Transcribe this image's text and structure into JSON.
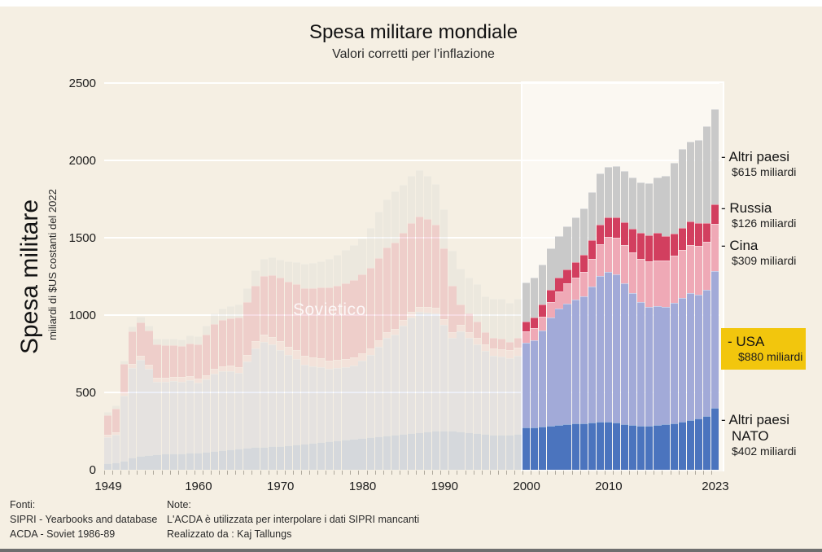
{
  "page": {
    "title": "Spesa militare mondiale",
    "subtitle": "Valori corretti per l’inflazione"
  },
  "y_axis": {
    "title": "Spesa militare",
    "unit": "miliardi di $US costanti del 2022",
    "ticks": [
      0,
      500,
      1000,
      1500,
      2000,
      2500
    ]
  },
  "x_axis": {
    "ticks": [
      1949,
      1960,
      1970,
      1980,
      1990,
      2000,
      2010,
      2023
    ]
  },
  "watermark": "Sovietico",
  "legend": [
    {
      "label": "- Altri paesi",
      "value": "$615 miliardi",
      "color": "#c9c9c9",
      "highlight": false
    },
    {
      "label": "- Russia",
      "value": "$126 miliardi",
      "color": "#d23f5f",
      "highlight": false
    },
    {
      "label": "- Cina",
      "value": "$309 miliardi",
      "color": "#efa9b6",
      "highlight": false
    },
    {
      "label": "- USA",
      "value": "$880 miliardi",
      "color": "#a2aad8",
      "highlight": true,
      "highlight_color": "#f2c60d"
    },
    {
      "label": "- Altri paesi",
      "label_line2": "NATO",
      "value": "$402 miliardi",
      "color": "#4b74be",
      "highlight": false
    }
  ],
  "footer": {
    "fonti_title": "Fonti:",
    "fonti_lines": [
      "SIPRI - Yearbooks and database",
      "ACDA - Soviet 1986-89"
    ],
    "note_title": "Note:",
    "note_lines": [
      "L'ACDA è utilizzata per interpolare i dati SIPRI mancanti",
      "Realizzato da : Kaj Tallungs"
    ]
  },
  "chart_data": {
    "type": "bar",
    "stacked": true,
    "title": "Spesa militare mondiale",
    "subtitle": "Valori corretti per l’inflazione",
    "ylabel": "Spesa militare (miliardi di $US costanti del 2022)",
    "ylim": [
      0,
      2500
    ],
    "grid": true,
    "legend_position": "right",
    "highlight_range": [
      2000,
      2023
    ],
    "faded_range": [
      1949,
      1999
    ],
    "x": [
      1949,
      1950,
      1951,
      1952,
      1953,
      1954,
      1955,
      1956,
      1957,
      1958,
      1959,
      1960,
      1961,
      1962,
      1963,
      1964,
      1965,
      1966,
      1967,
      1968,
      1969,
      1970,
      1971,
      1972,
      1973,
      1974,
      1975,
      1976,
      1977,
      1978,
      1979,
      1980,
      1981,
      1982,
      1983,
      1984,
      1985,
      1986,
      1987,
      1988,
      1989,
      1990,
      1991,
      1992,
      1993,
      1994,
      1995,
      1996,
      1997,
      1998,
      1999,
      2000,
      2001,
      2002,
      2003,
      2004,
      2005,
      2006,
      2007,
      2008,
      2009,
      2010,
      2011,
      2012,
      2013,
      2014,
      2015,
      2016,
      2017,
      2018,
      2019,
      2020,
      2021,
      2022,
      2023
    ],
    "series": [
      {
        "name": "Altri paesi NATO",
        "color": "#4b74be",
        "value_2023_label": "$402 miliardi",
        "values": [
          40,
          45,
          60,
          80,
          90,
          95,
          100,
          105,
          105,
          105,
          108,
          110,
          115,
          120,
          125,
          130,
          135,
          140,
          145,
          148,
          150,
          155,
          160,
          165,
          170,
          175,
          180,
          185,
          190,
          195,
          200,
          205,
          210,
          215,
          220,
          225,
          230,
          235,
          240,
          245,
          250,
          255,
          250,
          245,
          240,
          235,
          230,
          228,
          228,
          228,
          230,
          273,
          275,
          280,
          285,
          290,
          295,
          298,
          300,
          305,
          310,
          310,
          305,
          295,
          290,
          285,
          285,
          290,
          295,
          300,
          310,
          320,
          330,
          345,
          402
        ]
      },
      {
        "name": "USA",
        "color": "#a2aad8",
        "value_2023_label": "$880 miliardi",
        "values": [
          170,
          180,
          420,
          580,
          620,
          560,
          470,
          465,
          470,
          465,
          470,
          455,
          470,
          500,
          510,
          505,
          490,
          560,
          640,
          680,
          660,
          620,
          580,
          550,
          510,
          495,
          485,
          470,
          470,
          470,
          475,
          500,
          530,
          580,
          630,
          650,
          700,
          750,
          780,
          770,
          760,
          680,
          600,
          650,
          610,
          575,
          540,
          510,
          505,
          495,
          505,
          550,
          560,
          620,
          700,
          750,
          780,
          800,
          820,
          880,
          940,
          970,
          960,
          910,
          850,
          800,
          770,
          770,
          760,
          780,
          800,
          820,
          800,
          820,
          880
        ]
      },
      {
        "name": "Cina",
        "color": "#efa9b6",
        "value_2023_label": "$309 miliardi",
        "values": [
          15,
          18,
          22,
          25,
          25,
          25,
          25,
          25,
          26,
          28,
          28,
          25,
          28,
          32,
          34,
          36,
          40,
          42,
          44,
          46,
          50,
          55,
          56,
          56,
          55,
          54,
          54,
          52,
          50,
          50,
          52,
          48,
          44,
          42,
          40,
          38,
          36,
          35,
          35,
          35,
          36,
          37,
          38,
          42,
          42,
          40,
          42,
          45,
          46,
          50,
          56,
          70,
          80,
          92,
          100,
          115,
          130,
          145,
          160,
          180,
          210,
          225,
          235,
          250,
          265,
          280,
          290,
          295,
          300,
          305,
          310,
          315,
          315,
          310,
          309
        ]
      },
      {
        "name": "Russia (Sovietico prima del 1992)",
        "color": "#d23f5f",
        "value_2023_label": "$126 miliardi",
        "values": [
          130,
          150,
          180,
          210,
          220,
          220,
          215,
          210,
          205,
          200,
          210,
          220,
          260,
          290,
          300,
          310,
          320,
          340,
          360,
          380,
          400,
          410,
          420,
          430,
          440,
          450,
          460,
          470,
          480,
          490,
          500,
          510,
          520,
          530,
          545,
          555,
          565,
          575,
          580,
          570,
          540,
          460,
          300,
          130,
          120,
          110,
          80,
          70,
          70,
          55,
          60,
          65,
          70,
          75,
          80,
          85,
          90,
          100,
          110,
          120,
          125,
          125,
          130,
          145,
          155,
          165,
          170,
          175,
          155,
          140,
          145,
          150,
          150,
          120,
          126
        ]
      },
      {
        "name": "Altri paesi",
        "color": "#c9c9c9",
        "value_2023_label": "$615 miliardi",
        "values": [
          20,
          22,
          25,
          30,
          32,
          33,
          38,
          40,
          44,
          46,
          50,
          55,
          60,
          66,
          72,
          78,
          85,
          92,
          100,
          110,
          115,
          120,
          130,
          140,
          155,
          165,
          170,
          185,
          200,
          215,
          225,
          230,
          260,
          300,
          310,
          330,
          310,
          305,
          300,
          280,
          260,
          250,
          230,
          235,
          230,
          240,
          230,
          250,
          255,
          250,
          255,
          250,
          255,
          260,
          265,
          270,
          280,
          290,
          300,
          310,
          330,
          330,
          335,
          330,
          330,
          330,
          340,
          360,
          390,
          460,
          510,
          515,
          535,
          625,
          615
        ]
      }
    ]
  }
}
